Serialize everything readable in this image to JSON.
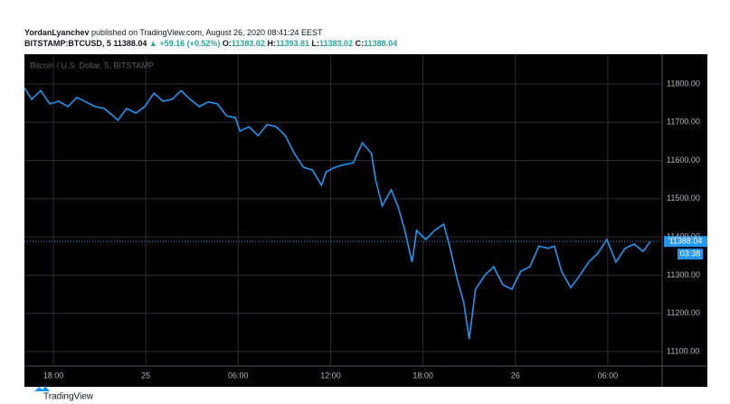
{
  "header": {
    "publisher": "YordanLyanchev",
    "published": "published on TradingView.com, August 26, 2020 08:41:24 EEST",
    "symbol": "BITSTAMP:BTCUSD, 5",
    "price": "11388.04",
    "change": "▲ +59.16 (+0.52%)",
    "o_label": "O:",
    "o_value": "11383.02",
    "h_label": "H:",
    "h_value": "11393.81",
    "l_label": "L:",
    "l_value": "11383.02",
    "c_label": "C:",
    "c_value": "11388.04"
  },
  "chart_data": {
    "type": "line",
    "watermark": "Bitcoin / U.S. Dollar, 5, BITSTAMP",
    "color": "#2196f3",
    "grid": true,
    "x": [
      16.12,
      16.59,
      17.18,
      17.76,
      18.35,
      18.94,
      19.53,
      20.12,
      20.71,
      21.29,
      21.88,
      22.18,
      22.76,
      23.35,
      23.94,
      24.53,
      25.12,
      25.71,
      26.29,
      26.88,
      27.47,
      28.06,
      28.65,
      29.24,
      29.82,
      30.12,
      30.71,
      31.29,
      31.88,
      32.47,
      33.06,
      33.65,
      34.24,
      34.82,
      35.41,
      35.71,
      36.29,
      36.88,
      37.47,
      38.06,
      38.65,
      38.94,
      39.35,
      39.94,
      40.41,
      40.82,
      41.29,
      41.59,
      42.18,
      42.76,
      43.35,
      43.76,
      44.24,
      44.65,
      45.0,
      45.41,
      46.0,
      46.59,
      47.18,
      47.76,
      48.35,
      48.94,
      49.53,
      50.12,
      50.53,
      51.0,
      51.59,
      52.18,
      52.76,
      53.35,
      53.94,
      54.53,
      55.12,
      55.71,
      56.29,
      56.76
    ],
    "values": [
      11790,
      11760,
      11783,
      11748,
      11755,
      11741,
      11765,
      11753,
      11741,
      11736,
      11717,
      11705,
      11736,
      11724,
      11741,
      11776,
      11755,
      11760,
      11783,
      11760,
      11741,
      11753,
      11748,
      11717,
      11712,
      11677,
      11688,
      11665,
      11694,
      11688,
      11665,
      11618,
      11582,
      11575,
      11535,
      11570,
      11582,
      11589,
      11594,
      11646,
      11618,
      11547,
      11481,
      11523,
      11476,
      11417,
      11334,
      11417,
      11393,
      11417,
      11433,
      11370,
      11287,
      11228,
      11133,
      11263,
      11299,
      11322,
      11275,
      11263,
      11310,
      11322,
      11376,
      11370,
      11376,
      11310,
      11267,
      11299,
      11334,
      11357,
      11393,
      11334,
      11370,
      11381,
      11362,
      11388
    ],
    "xlim": [
      16.12,
      57.53
    ],
    "xticks": [
      {
        "value": 18,
        "label": "18:00"
      },
      {
        "value": 24,
        "label": "25"
      },
      {
        "value": 30,
        "label": "06:00"
      },
      {
        "value": 36,
        "label": "12:00"
      },
      {
        "value": 42,
        "label": "18:00"
      },
      {
        "value": 48,
        "label": "26"
      },
      {
        "value": 54,
        "label": "06:00"
      }
    ],
    "ylim": [
      11062,
      11878
    ],
    "yticks": [
      {
        "value": 11100,
        "label": "11100.00"
      },
      {
        "value": 11200,
        "label": "11200.00"
      },
      {
        "value": 11300,
        "label": "11300.00"
      },
      {
        "value": 11400,
        "label": "11400.00"
      },
      {
        "value": 11500,
        "label": "11500.00"
      },
      {
        "value": 11600,
        "label": "11600.00"
      },
      {
        "value": 11700,
        "label": "11700.00"
      },
      {
        "value": 11800,
        "label": "11800.00"
      }
    ],
    "last_price": 11388.04,
    "countdown": "03:38"
  },
  "footer": {
    "brand": "TradingView"
  }
}
